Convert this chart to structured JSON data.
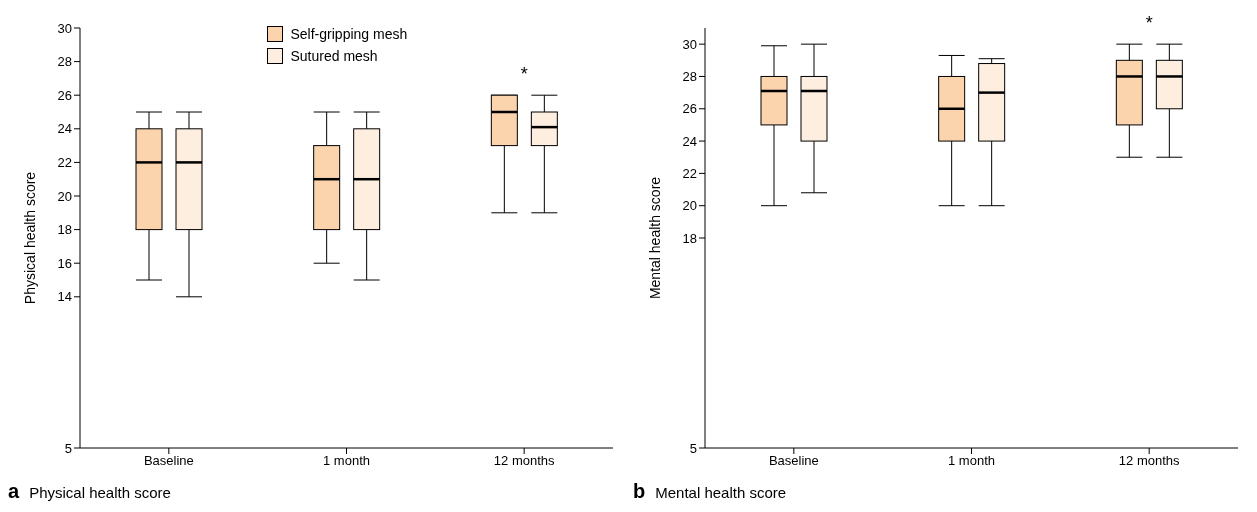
{
  "chart_data": [
    {
      "type": "box",
      "title": "Physical health score",
      "ylabel": "Physical health score",
      "categories": [
        "Baseline",
        "1 month",
        "12 months"
      ],
      "ylim": [
        5,
        30
      ],
      "yticks": [
        5,
        14,
        16,
        18,
        20,
        22,
        24,
        26,
        28,
        30
      ],
      "legend": "top",
      "annotations": [
        "a",
        "*"
      ],
      "series": [
        {
          "name": "Self-gripping mesh",
          "color": "#fbd3ad",
          "boxes": [
            {
              "low": 15,
              "q1": 18,
              "median": 22,
              "q3": 24,
              "high": 25
            },
            {
              "low": 16,
              "q1": 18,
              "median": 21,
              "q3": 23,
              "high": 25
            },
            {
              "low": 19,
              "q1": 23,
              "median": 25,
              "q3": 26,
              "high": 26
            }
          ]
        },
        {
          "name": "Sutured mesh",
          "color": "#fdeee0",
          "boxes": [
            {
              "low": 14,
              "q1": 18,
              "median": 22,
              "q3": 24,
              "high": 25
            },
            {
              "low": 15,
              "q1": 18,
              "median": 21,
              "q3": 24,
              "high": 25
            },
            {
              "low": 19,
              "q1": 23,
              "median": 24.1,
              "q3": 25,
              "high": 26
            }
          ]
        }
      ]
    },
    {
      "type": "box",
      "title": "Mental health score",
      "ylabel": "Mental health score",
      "categories": [
        "Baseline",
        "1 month",
        "12 months"
      ],
      "ylim": [
        5,
        31
      ],
      "yticks": [
        5,
        18,
        20,
        22,
        24,
        26,
        28,
        30
      ],
      "annotations": [
        "b",
        "*"
      ],
      "series": [
        {
          "color": "#fbd3ad",
          "boxes": [
            {
              "low": 20,
              "q1": 25,
              "median": 27.1,
              "q3": 28,
              "high": 29.9
            },
            {
              "low": 20,
              "q1": 24,
              "median": 26,
              "q3": 28,
              "high": 29.3
            },
            {
              "low": 23,
              "q1": 25,
              "median": 28,
              "q3": 29,
              "high": 30
            }
          ]
        },
        {
          "color": "#fdeee0",
          "boxes": [
            {
              "low": 20.8,
              "q1": 24,
              "median": 27.1,
              "q3": 28,
              "high": 30
            },
            {
              "low": 20,
              "q1": 24,
              "median": 27,
              "q3": 28.8,
              "high": 29.1
            },
            {
              "low": 23,
              "q1": 26,
              "median": 28,
              "q3": 29,
              "high": 30
            }
          ]
        }
      ]
    }
  ]
}
